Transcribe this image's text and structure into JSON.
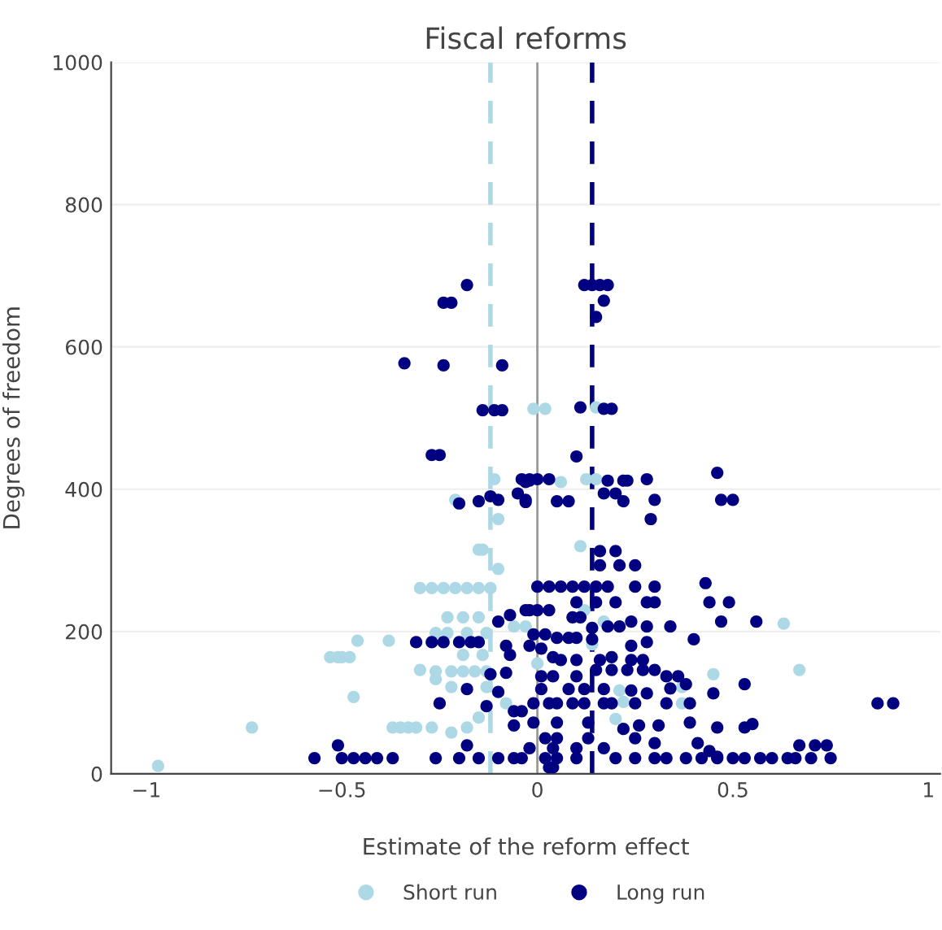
{
  "chart_data": {
    "type": "scatter",
    "title": "Fiscal reforms",
    "xlabel": "Estimate of the reform effect",
    "ylabel": "Degrees of freedom",
    "xlim": [
      -1.09,
      1.03
    ],
    "ylim": [
      0,
      1000
    ],
    "xticks": [
      {
        "value": -1,
        "label": "−1"
      },
      {
        "value": -0.5,
        "label": "−0.5"
      },
      0,
      0.5,
      1
    ],
    "yticks": [
      0,
      200,
      400,
      600,
      800,
      1000
    ],
    "grid": "y",
    "legend": "bottom",
    "marker": "circle",
    "ref_lines": [
      {
        "axis": "x",
        "value": 0,
        "color": "#999999",
        "line_style": "solid"
      },
      {
        "axis": "x",
        "value": -0.12,
        "color": "#add8e6",
        "line_style": "dashed"
      },
      {
        "axis": "x",
        "value": 0.14,
        "color": "#000080",
        "line_style": "dashed"
      }
    ],
    "series": [
      {
        "name": "Short run",
        "color": "#add8e6",
        "x": [
          -0.21,
          -0.11,
          -0.1,
          -0.15,
          -0.14,
          -0.01,
          0.02,
          0.15,
          0.06,
          0.125,
          0.15,
          0.11,
          -0.97,
          -0.73,
          -0.53,
          -0.51,
          -0.5,
          -0.48,
          -0.46,
          -0.38,
          -0.47,
          -0.37,
          -0.35,
          -0.33,
          -0.31,
          -0.3,
          -0.3,
          -0.27,
          -0.24,
          -0.21,
          -0.18,
          -0.15,
          -0.12,
          -0.1,
          -0.23,
          -0.19,
          -0.15,
          -0.26,
          -0.23,
          -0.18,
          -0.13,
          -0.19,
          -0.14,
          -0.26,
          -0.22,
          -0.19,
          -0.16,
          -0.13,
          -0.26,
          -0.22,
          -0.13,
          -0.27,
          -0.22,
          -0.18,
          -0.15,
          -0.08,
          -0.06,
          -0.03,
          0.0,
          0.17,
          0.12,
          0.21,
          0.22,
          0.2,
          0.37,
          0.37,
          0.45,
          0.67,
          0.14,
          0.63
        ],
        "values": [
          385,
          414,
          358,
          315,
          315,
          513,
          513,
          515,
          410,
          414,
          414,
          320,
          11,
          65,
          164,
          164,
          164,
          164,
          187,
          187,
          108,
          65,
          65,
          65,
          65,
          146,
          261,
          261,
          261,
          261,
          261,
          261,
          261,
          288,
          220,
          220,
          220,
          198,
          198,
          198,
          198,
          167,
          167,
          144,
          144,
          144,
          144,
          144,
          133,
          122,
          122,
          65,
          58,
          65,
          79,
          99,
          207,
          207,
          155,
          214,
          230,
          117,
          101,
          77,
          122,
          99,
          140,
          146,
          182,
          211
        ]
      },
      {
        "name": "Long run",
        "color": "#000080",
        "x": [
          -0.18,
          -0.24,
          -0.22,
          -0.34,
          -0.24,
          -0.09,
          -0.14,
          -0.11,
          -0.09,
          -0.27,
          -0.25,
          -0.2,
          -0.15,
          -0.12,
          -0.1,
          -0.05,
          -0.03,
          -0.03,
          -0.02,
          0.12,
          0.14,
          0.16,
          0.18,
          0.17,
          0.15,
          0.11,
          0.17,
          0.19,
          0.1,
          -0.04,
          -0.02,
          0.0,
          0.03,
          -0.03,
          0.05,
          0.08,
          0.18,
          0.22,
          0.23,
          0.28,
          0.17,
          0.2,
          0.22,
          0.3,
          0.29,
          0.46,
          0.47,
          0.5,
          0.16,
          0.2,
          -0.57,
          -0.5,
          -0.47,
          -0.44,
          -0.41,
          -0.37,
          -0.51,
          -0.31,
          -0.27,
          -0.24,
          -0.2,
          -0.17,
          -0.15,
          -0.08,
          -0.07,
          -0.1,
          -0.07,
          -0.02,
          -0.18,
          -0.25,
          -0.1,
          -0.12,
          -0.08,
          -0.06,
          -0.04,
          -0.06,
          -0.26,
          -0.2,
          -0.15,
          -0.1,
          -0.06,
          -0.18,
          -0.13,
          0.16,
          0.21,
          0.25,
          0.0,
          0.03,
          0.06,
          0.09,
          0.12,
          0.15,
          0.18,
          0.25,
          0.3,
          0.43,
          0.1,
          0.15,
          0.2,
          0.28,
          0.3,
          0.44,
          0.49,
          -0.03,
          0.0,
          0.03,
          0.09,
          0.11,
          0.14,
          0.18,
          0.21,
          0.24,
          0.28,
          0.34,
          0.4,
          0.47,
          0.56,
          -0.01,
          0.02,
          -0.02,
          0.01,
          0.05,
          0.08,
          0.1,
          0.14,
          0.24,
          0.28,
          0.04,
          0.06,
          0.1,
          0.16,
          0.19,
          0.24,
          0.27,
          0.15,
          0.19,
          0.23,
          0.27,
          0.3,
          0.33,
          0.36,
          0.01,
          0.04,
          0.1,
          0.01,
          0.08,
          0.12,
          0.17,
          0.24,
          0.28,
          0.34,
          0.38,
          0.45,
          0.53,
          -0.01,
          0.03,
          0.05,
          0.09,
          0.12,
          0.17,
          0.19,
          0.25,
          0.33,
          0.39,
          0.87,
          0.91,
          -0.01,
          0.05,
          0.13,
          0.22,
          0.26,
          0.31,
          0.39,
          0.46,
          0.53,
          0.55,
          0.02,
          0.05,
          0.13,
          0.25,
          0.3,
          0.41,
          -0.02,
          0.04,
          0.1,
          0.17,
          0.44,
          0.46,
          0.67,
          0.71,
          0.74,
          -0.04,
          0.02,
          0.05,
          0.1,
          0.2,
          0.25,
          0.3,
          0.33,
          0.38,
          0.42,
          0.46,
          0.5,
          0.53,
          0.57,
          0.6,
          0.64,
          0.66,
          0.7,
          0.75,
          0.03,
          0.04
        ],
        "values": [
          687,
          662,
          662,
          577,
          574,
          574,
          511,
          511,
          511,
          448,
          448,
          380,
          383,
          390,
          385,
          394,
          382,
          410,
          412,
          687,
          687,
          687,
          687,
          665,
          642,
          515,
          513,
          513,
          446,
          414,
          414,
          414,
          414,
          385,
          383,
          383,
          412,
          412,
          412,
          414,
          394,
          394,
          383,
          385,
          358,
          423,
          385,
          385,
          313,
          313,
          22,
          22,
          22,
          22,
          22,
          22,
          40,
          185,
          185,
          185,
          185,
          185,
          185,
          180,
          167,
          214,
          223,
          230,
          119,
          99,
          115,
          140,
          142,
          88,
          88,
          68,
          22,
          22,
          22,
          22,
          22,
          40,
          95,
          293,
          293,
          293,
          263,
          263,
          263,
          263,
          263,
          263,
          263,
          263,
          263,
          268,
          241,
          241,
          241,
          241,
          241,
          241,
          241,
          230,
          230,
          230,
          220,
          220,
          205,
          207,
          207,
          214,
          207,
          207,
          189,
          214,
          214,
          196,
          196,
          180,
          176,
          191,
          191,
          191,
          189,
          180,
          185,
          164,
          160,
          160,
          160,
          164,
          160,
          160,
          146,
          146,
          146,
          146,
          146,
          137,
          137,
          137,
          137,
          137,
          119,
          119,
          119,
          119,
          117,
          113,
          120,
          126,
          113,
          126,
          99,
          99,
          99,
          99,
          99,
          99,
          99,
          99,
          99,
          99,
          99,
          99,
          72,
          72,
          72,
          63,
          68,
          68,
          72,
          65,
          65,
          70,
          50,
          50,
          50,
          50,
          43,
          43,
          36,
          36,
          36,
          36,
          32,
          24,
          40,
          40,
          40,
          22,
          22,
          22,
          22,
          22,
          22,
          22,
          22,
          22,
          22,
          22,
          22,
          22,
          22,
          22,
          22,
          22,
          22,
          22,
          9,
          9
        ]
      }
    ]
  }
}
